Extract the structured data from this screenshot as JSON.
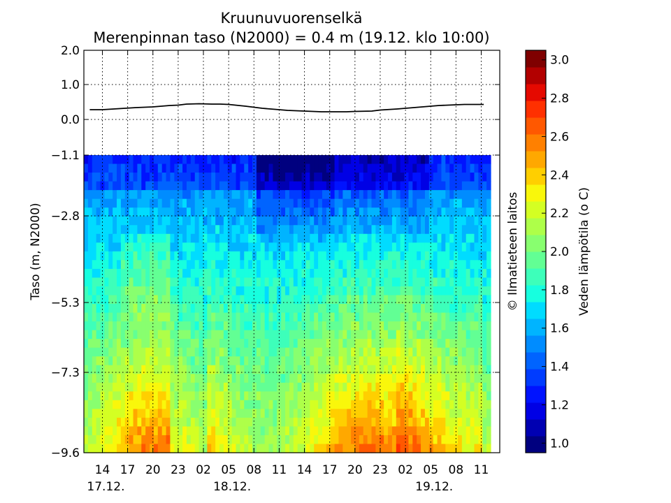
{
  "chart_data": {
    "type": "heatmap",
    "title": "Kruunuvuorenselkä",
    "subtitle": "Merenpinnan taso (N2000) = 0.4 m (19.12. klo 10:00)",
    "ylabel": "Taso (m, N2000)",
    "credit": "© Ilmatieteen laitos",
    "y_ticks": [
      2.0,
      1.0,
      0.0,
      -1.1,
      -2.8,
      -5.3,
      -7.3,
      -9.6
    ],
    "y_tick_labels": [
      "2.0",
      "1.0",
      "0.0",
      "−1.1",
      "−2.8",
      "−5.3",
      "−7.3",
      "−9.6"
    ],
    "ylim": [
      -9.6,
      2.0
    ],
    "x_hours": [
      14,
      17,
      20,
      23,
      26,
      29,
      32,
      35,
      38,
      41,
      44,
      47,
      50,
      53,
      56,
      59
    ],
    "x_tick_labels": [
      "14",
      "17",
      "20",
      "23",
      "02",
      "05",
      "08",
      "11",
      "14",
      "17",
      "20",
      "23",
      "02",
      "05",
      "08",
      "11"
    ],
    "x_date_labels": [
      {
        "hour": 12,
        "label": "17.12."
      },
      {
        "hour": 27,
        "label": "18.12."
      },
      {
        "hour": 51,
        "label": "19.12."
      }
    ],
    "x_range_hours": [
      11.8,
      61.2
    ],
    "x_units": "hours from 17.12. 00:00",
    "grid": true,
    "sea_level": {
      "x_hours": [
        12.5,
        14,
        16,
        18,
        20,
        22,
        23,
        24,
        25.5,
        27,
        28,
        29,
        31,
        33,
        35,
        36,
        38,
        40,
        41,
        43,
        44,
        46,
        47,
        49,
        51,
        52,
        54,
        56,
        57,
        58,
        59.3
      ],
      "values": [
        0.28,
        0.28,
        0.31,
        0.34,
        0.36,
        0.4,
        0.41,
        0.44,
        0.45,
        0.44,
        0.44,
        0.43,
        0.38,
        0.32,
        0.28,
        0.26,
        0.24,
        0.22,
        0.22,
        0.22,
        0.23,
        0.24,
        0.27,
        0.3,
        0.34,
        0.36,
        0.4,
        0.42,
        0.43,
        0.43,
        0.43
      ]
    },
    "temperature_field": {
      "x_range_hours": [
        11.8,
        61.2
      ],
      "depth_range_m": [
        -1.1,
        -9.6
      ],
      "nx": 99,
      "ny": 34,
      "description_of_values": "water temperature (°C) by time and depth, read from colour map"
    },
    "colorbar": {
      "label": "Veden lämpötila (o C)",
      "range": [
        0.95,
        3.05
      ],
      "ticks": [
        1.0,
        1.2,
        1.4,
        1.6,
        1.8,
        2.0,
        2.2,
        2.4,
        2.6,
        2.8,
        3.0
      ],
      "tick_labels": [
        "1.0",
        "1.2",
        "1.4",
        "1.6",
        "1.8",
        "2.0",
        "2.2",
        "2.4",
        "2.6",
        "2.8",
        "3.0"
      ],
      "colors": [
        "#00007f",
        "#0000b2",
        "#0000e5",
        "#0013ff",
        "#003cff",
        "#0064ff",
        "#008cff",
        "#00b4ff",
        "#00dcff",
        "#17ffdf",
        "#3dffba",
        "#62ff94",
        "#88ff6f",
        "#aeff49",
        "#d4ff23",
        "#f9f70b",
        "#ffcf00",
        "#ffa800",
        "#ff8000",
        "#ff5800",
        "#ff3000",
        "#e50900",
        "#b20000",
        "#7f0000"
      ]
    }
  }
}
